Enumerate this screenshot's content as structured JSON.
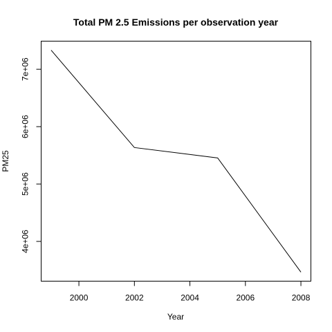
{
  "chart_data": {
    "type": "line",
    "title": "Total PM 2.5 Emissions per observation year",
    "xlabel": "Year",
    "ylabel": "PM25",
    "x": [
      1999,
      2002,
      2005,
      2008
    ],
    "series": [
      {
        "values": [
          7332967,
          5635780,
          5454703,
          3464206
        ]
      }
    ],
    "xlim": [
      1998.64,
      2008.36
    ],
    "ylim": [
      3307216,
      7489957
    ],
    "xticks": [
      2000,
      2002,
      2004,
      2006,
      2008
    ],
    "xtick_labels": [
      "2000",
      "2002",
      "2004",
      "2006",
      "2008"
    ],
    "yticks": [
      4000000,
      5000000,
      6000000,
      7000000
    ],
    "ytick_labels": [
      "4e+06",
      "5e+06",
      "6e+06",
      "7e+06"
    ],
    "line_color": "#000000",
    "grid": false,
    "legend": "none"
  }
}
